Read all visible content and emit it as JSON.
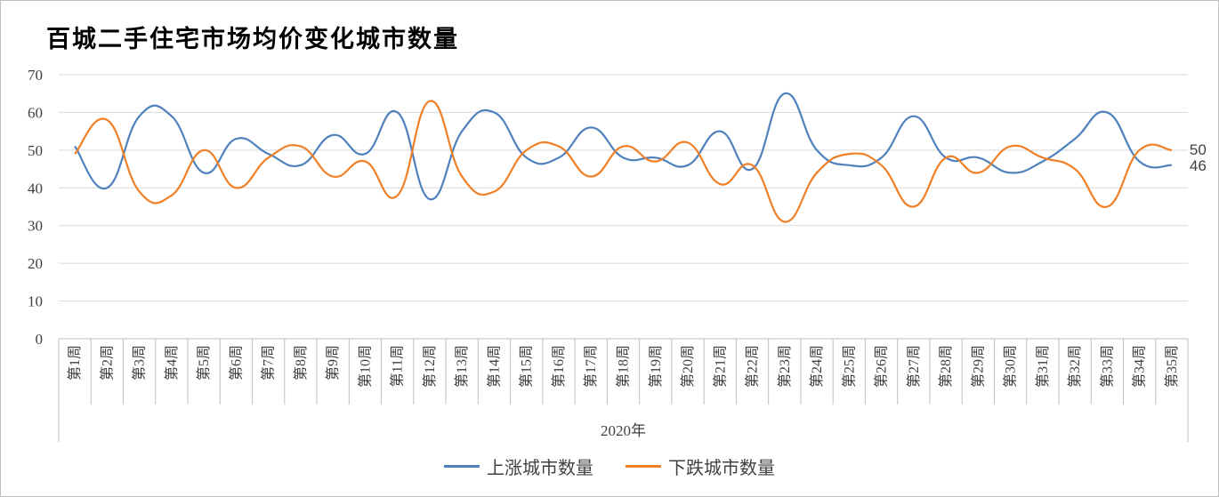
{
  "chart_data": {
    "type": "line",
    "title": "百城二手住宅市场均价变化城市数量",
    "xlabel": "2020年",
    "ylabel": "",
    "ylim": [
      0,
      70
    ],
    "yticks": [
      "0",
      "10",
      "20",
      "30",
      "40",
      "50",
      "60",
      "70"
    ],
    "grid": true,
    "legend": "bottom",
    "categories": [
      "第1周",
      "第2周",
      "第3周",
      "第4周",
      "第5周",
      "第6周",
      "第7周",
      "第8周",
      "第9周",
      "第10周",
      "第11周",
      "第12周",
      "第13周",
      "第14周",
      "第15周",
      "第16周",
      "第17周",
      "第18周",
      "第19周",
      "第20周",
      "第21周",
      "第22周",
      "第23周",
      "第24周",
      "第25周",
      "第26周",
      "第27周",
      "第28周",
      "第29周",
      "第30周",
      "第31周",
      "第32周",
      "第33周",
      "第34周",
      "第35周"
    ],
    "series": [
      {
        "name": "上涨城市数量",
        "color": "#4f81bd",
        "values": [
          51,
          40,
          59,
          59,
          44,
          53,
          49,
          46,
          54,
          49,
          60,
          37,
          55,
          60,
          48,
          48,
          56,
          48,
          48,
          46,
          55,
          45,
          65,
          50,
          46,
          48,
          59,
          48,
          48,
          44,
          47,
          53,
          60,
          47,
          46
        ]
      },
      {
        "name": "下跌城市数量",
        "color": "#f07f26",
        "values": [
          49,
          58,
          39,
          38,
          50,
          40,
          48,
          51,
          43,
          47,
          38,
          63,
          43,
          39,
          50,
          51,
          43,
          51,
          47,
          52,
          41,
          46,
          31,
          44,
          49,
          46,
          35,
          48,
          44,
          51,
          48,
          45,
          35,
          50,
          50
        ]
      }
    ],
    "end_labels": [
      "50",
      "46"
    ]
  }
}
